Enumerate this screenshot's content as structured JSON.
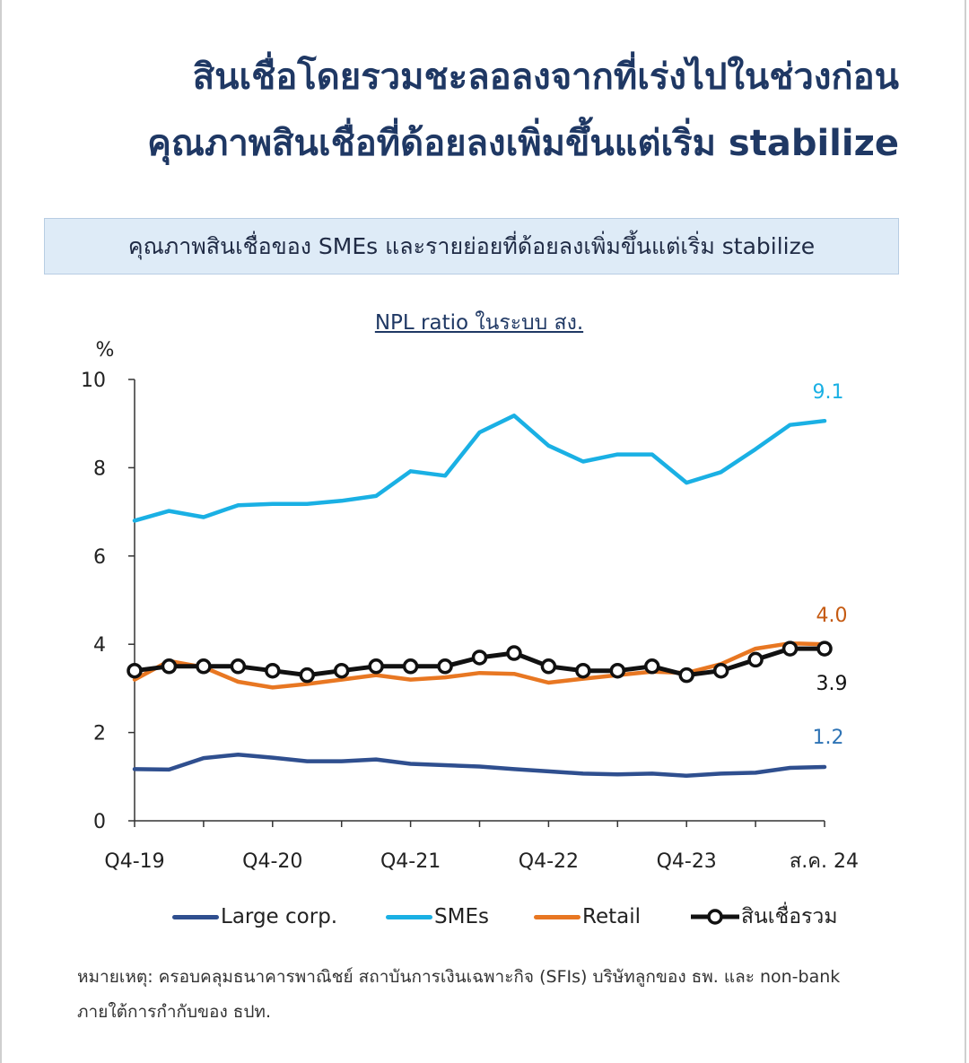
{
  "header": {
    "title_line1": "สินเชื่อโดยรวมชะลอลงจากที่เร่งไปในช่วงก่อน",
    "title_line2": "คุณภาพสินเชื่อที่ด้อยลงเพิ่มขึ้นแต่เริ่ม stabilize"
  },
  "subtitle": "คุณภาพสินเชื่อของ SMEs และรายย่อยที่ด้อยลงเพิ่มขึ้นแต่เริ่ม stabilize",
  "chart_data": {
    "type": "line",
    "title": "NPL ratio ในระบบ สง.",
    "ylabel": "%",
    "xlabel": "",
    "ylim": [
      0,
      10
    ],
    "yticks": [
      "0",
      "2",
      "4",
      "6",
      "8",
      "10"
    ],
    "x_labels": [
      "Q4-19",
      "Q4-20",
      "Q4-21",
      "Q4-22",
      "Q4-23",
      "ส.ค. 24"
    ],
    "legend_position": "bottom",
    "grid": false,
    "series": [
      {
        "name": "Large corp.",
        "color": "#2f4f8f",
        "markers": false,
        "values": [
          1.17,
          1.16,
          1.42,
          1.5,
          1.43,
          1.35,
          1.35,
          1.39,
          1.29,
          1.26,
          1.23,
          1.17,
          1.12,
          1.07,
          1.05,
          1.07,
          1.02,
          1.07,
          1.09,
          1.2,
          1.22
        ],
        "end_label": "1.2"
      },
      {
        "name": "SMEs",
        "color": "#1ab0e4",
        "markers": false,
        "values": [
          6.8,
          7.02,
          6.88,
          7.15,
          7.18,
          7.18,
          7.25,
          7.36,
          7.92,
          7.82,
          8.8,
          9.18,
          8.5,
          8.14,
          8.3,
          8.3,
          7.66,
          7.9,
          8.42,
          8.97,
          9.06
        ],
        "end_label": "9.1"
      },
      {
        "name": "Retail",
        "color": "#e87722",
        "markers": false,
        "values": [
          3.2,
          3.62,
          3.48,
          3.15,
          3.02,
          3.1,
          3.2,
          3.3,
          3.2,
          3.25,
          3.35,
          3.33,
          3.13,
          3.22,
          3.3,
          3.38,
          3.35,
          3.55,
          3.9,
          4.02,
          4.0
        ],
        "end_label": "4.0"
      },
      {
        "name": "สินเชื่อรวม",
        "color": "#111111",
        "markers": true,
        "values": [
          3.4,
          3.5,
          3.5,
          3.5,
          3.4,
          3.3,
          3.4,
          3.5,
          3.5,
          3.5,
          3.7,
          3.8,
          3.5,
          3.4,
          3.4,
          3.5,
          3.3,
          3.4,
          3.65,
          3.9,
          3.9
        ],
        "end_label": "3.9"
      }
    ]
  },
  "note": {
    "line1": "หมายเหตุ: ครอบคลุมธนาคารพาณิชย์ สถาบันการเงินเฉพาะกิจ (SFIs) บริษัทลูกของ ธพ. และ non-bank",
    "line2": "ภายใต้การกำกับของ ธปท."
  }
}
